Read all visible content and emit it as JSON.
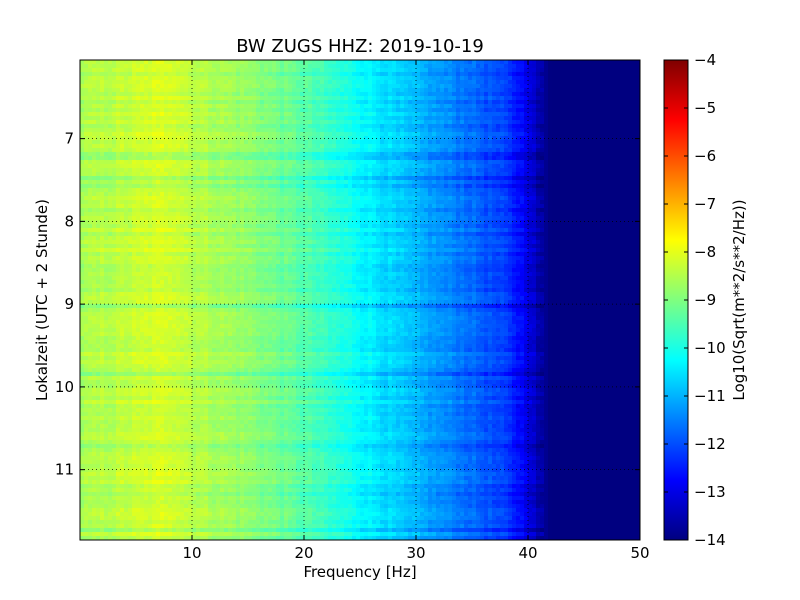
{
  "chart_data": {
    "type": "heatmap",
    "title": "BW ZUGS HHZ: 2019-10-19",
    "xlabel": "Frequency [Hz]",
    "ylabel": "Lokalzeit (UTC + 2 Stunde)",
    "xlim": [
      0,
      50
    ],
    "ylim": [
      11.85,
      6.05
    ],
    "y_inverted": true,
    "grid": true,
    "x_ticks": [
      10,
      20,
      30,
      40,
      50
    ],
    "x_tick_labels": [
      "10",
      "20",
      "30",
      "40",
      "50"
    ],
    "y_ticks": [
      7,
      8,
      9,
      10,
      11
    ],
    "y_tick_labels": [
      "7",
      "8",
      "9",
      "10",
      "11"
    ],
    "colormap": "jet",
    "colorbar": {
      "label": "Log10(Sqrt(m**2/s**2/Hz))",
      "range": [
        -14,
        -4
      ],
      "ticks": [
        -4,
        -5,
        -6,
        -7,
        -8,
        -9,
        -10,
        -11,
        -12,
        -13,
        -14
      ],
      "tick_labels": [
        "−4",
        "−5",
        "−6",
        "−7",
        "−8",
        "−9",
        "−10",
        "−11",
        "−12",
        "−13",
        "−14"
      ]
    },
    "spectrum_profile": {
      "frequency_hz": [
        0,
        5,
        8,
        10,
        15,
        20,
        25,
        30,
        35,
        38,
        40,
        41,
        42,
        45,
        50
      ],
      "log10_amplitude": [
        -8.6,
        -8.3,
        -8.1,
        -8.4,
        -8.8,
        -9.4,
        -10.2,
        -11.0,
        -11.7,
        -12.2,
        -12.9,
        -13.6,
        -14.0,
        -14.0,
        -14.0
      ]
    }
  }
}
